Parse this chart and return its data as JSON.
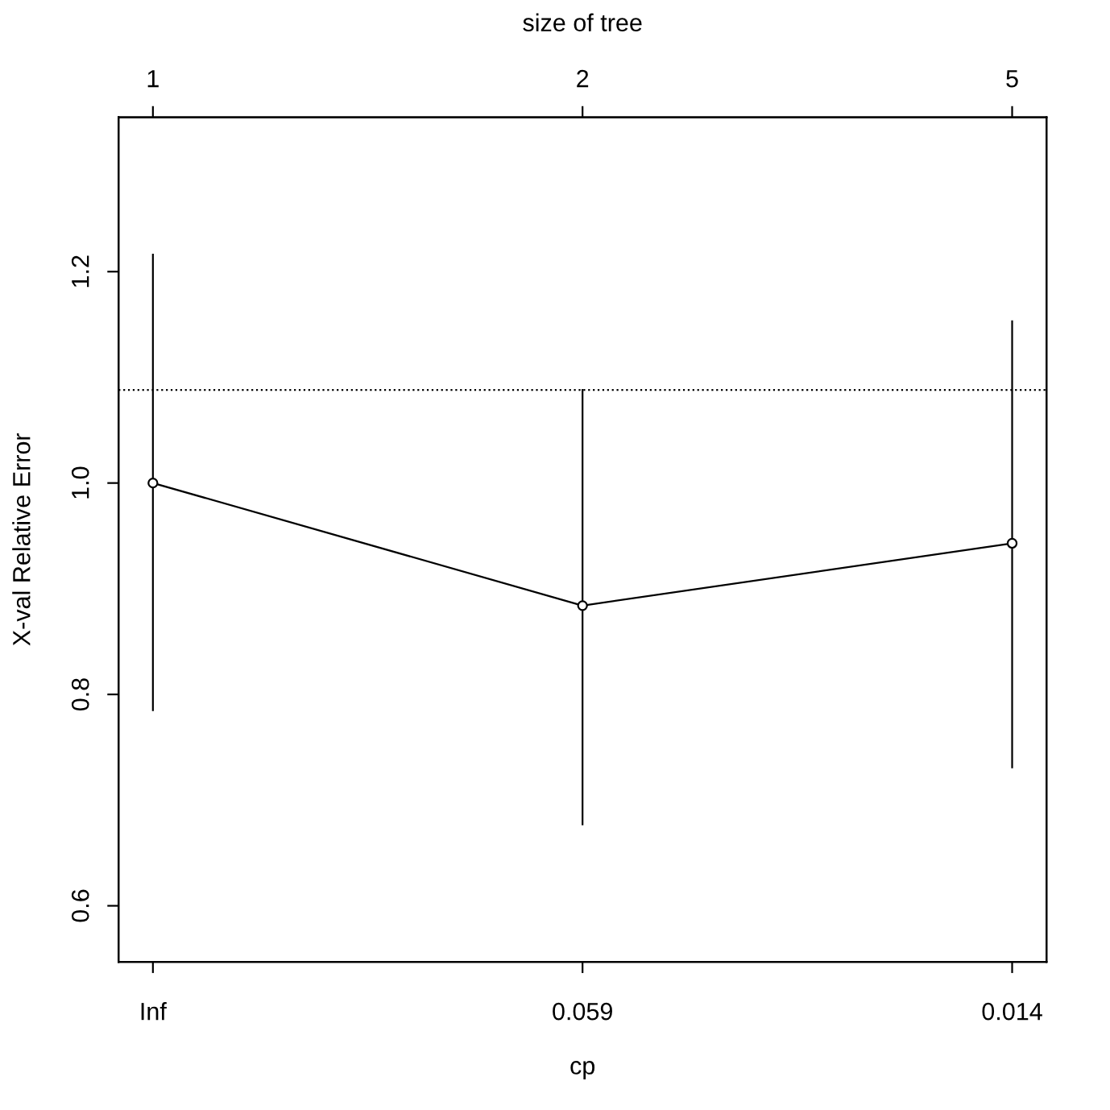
{
  "chart_data": {
    "type": "line",
    "xlabel": "cp",
    "ylabel": "X-val Relative Error",
    "x2label": "size of tree",
    "categories": [
      "Inf",
      "0.059",
      "0.014"
    ],
    "series": [
      {
        "color": "#000000",
        "values": [
          1.0,
          0.884,
          0.943
        ],
        "errors": [
          [
            0.785,
            1.216
          ],
          [
            0.677,
            1.088
          ],
          [
            0.731,
            1.153
          ]
        ]
      }
    ],
    "ylim": [
      0.547,
      1.346
    ],
    "yticks": [
      0.6,
      0.8,
      {
        "value": 1,
        "label": "1.0"
      },
      1.2
    ],
    "annotations": [
      "1",
      "2",
      "5"
    ],
    "ref_lines": [
      {
        "axis": "y",
        "value": 1.088,
        "line_style": "dotted",
        "color": "#000000"
      }
    ],
    "marker": "circle",
    "line_style": "solid"
  }
}
